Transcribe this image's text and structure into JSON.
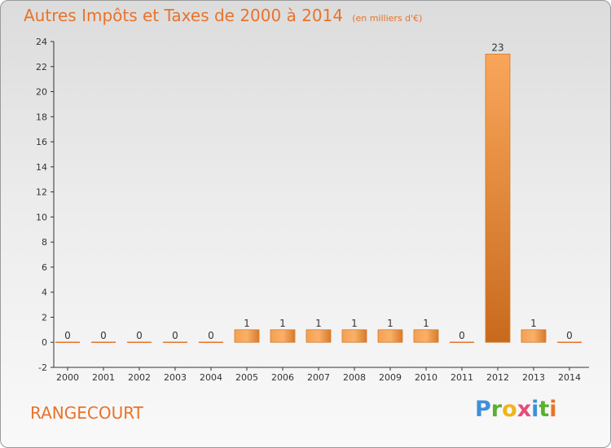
{
  "title": "Autres Impôts et Taxes de 2000 à 2014",
  "unit_label": "(en milliers d'€)",
  "commune": "RANGECOURT",
  "logo": {
    "text": "Proxiti"
  },
  "colors": {
    "accent": "#e8732a",
    "bar_light": "#f9a65a",
    "bar_dark": "#c86a1e"
  },
  "chart_data": {
    "type": "bar",
    "categories": [
      "2000",
      "2001",
      "2002",
      "2003",
      "2004",
      "2005",
      "2006",
      "2007",
      "2008",
      "2009",
      "2010",
      "2011",
      "2012",
      "2013",
      "2014"
    ],
    "values": [
      0,
      0,
      0,
      0,
      0,
      1,
      1,
      1,
      1,
      1,
      1,
      0,
      23,
      1,
      0
    ],
    "value_labels": [
      "0",
      "0",
      "0",
      "0",
      "0",
      "1",
      "1",
      "1",
      "1",
      "1",
      "1",
      "0",
      "23",
      "1",
      "0"
    ],
    "ylim": [
      -2,
      24
    ],
    "yticks": [
      -2,
      0,
      2,
      4,
      6,
      8,
      10,
      12,
      14,
      16,
      18,
      20,
      22,
      24
    ],
    "grid": false,
    "legend": "none"
  }
}
